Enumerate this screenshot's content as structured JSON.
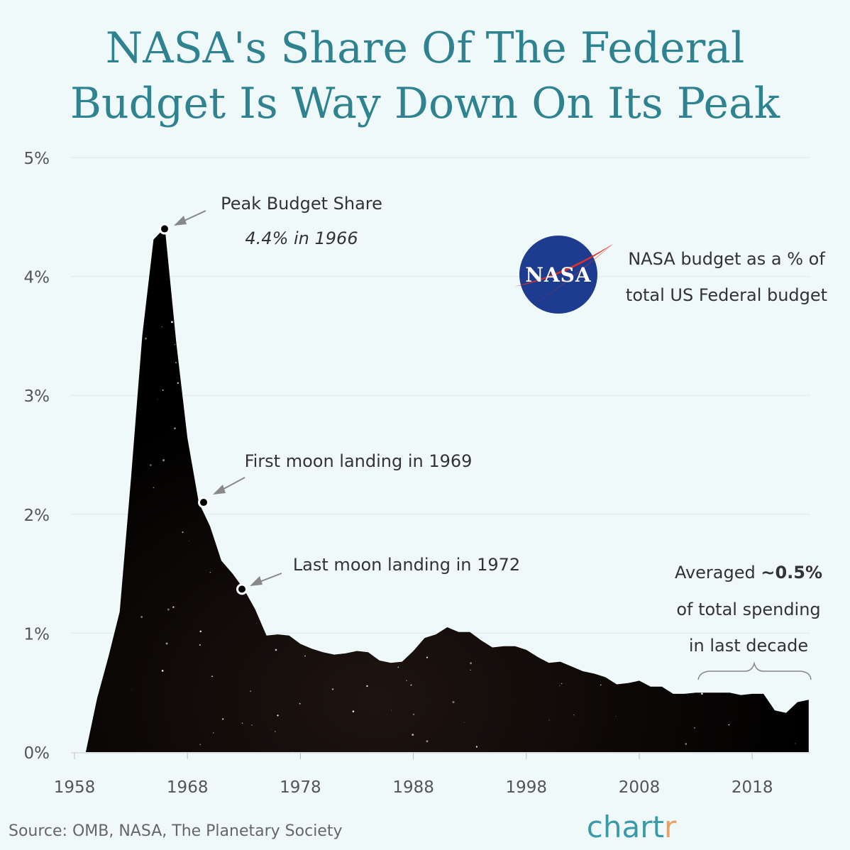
{
  "chart_data": {
    "type": "area",
    "title": "NASA's Share Of The Federal Budget Is Way Down On Its Peak",
    "title_lines": [
      "NASA's Share Of The Federal",
      "Budget Is Way Down On Its Peak"
    ],
    "xlabel": "",
    "ylabel": "",
    "xlim": [
      1958,
      2023
    ],
    "ylim": [
      0,
      5
    ],
    "grid": true,
    "x_ticks": [
      "1958",
      "1968",
      "1978",
      "1988",
      "1998",
      "2008",
      "2018"
    ],
    "y_ticks": [
      "0%",
      "1%",
      "2%",
      "3%",
      "4%",
      "5%"
    ],
    "x": [
      1959,
      1960,
      1961,
      1962,
      1963,
      1964,
      1965,
      1966,
      1967,
      1968,
      1969,
      1970,
      1971,
      1972,
      1973,
      1974,
      1975,
      1976,
      1977,
      1978,
      1979,
      1980,
      1981,
      1982,
      1983,
      1984,
      1985,
      1986,
      1987,
      1988,
      1989,
      1990,
      1991,
      1992,
      1993,
      1994,
      1995,
      1996,
      1997,
      1998,
      1999,
      2000,
      2001,
      2002,
      2003,
      2004,
      2005,
      2006,
      2007,
      2008,
      2009,
      2010,
      2011,
      2012,
      2013,
      2014,
      2015,
      2016,
      2017,
      2018,
      2019,
      2020,
      2021,
      2022,
      2023
    ],
    "values": [
      0,
      0.45,
      0.8,
      1.18,
      2.3,
      3.5,
      4.31,
      4.41,
      3.45,
      2.64,
      2.1,
      1.9,
      1.61,
      1.5,
      1.37,
      1.2,
      0.98,
      0.99,
      0.98,
      0.91,
      0.87,
      0.84,
      0.82,
      0.83,
      0.85,
      0.84,
      0.77,
      0.75,
      0.76,
      0.85,
      0.96,
      0.99,
      1.05,
      1.01,
      1.01,
      0.94,
      0.88,
      0.89,
      0.89,
      0.86,
      0.8,
      0.75,
      0.76,
      0.72,
      0.68,
      0.66,
      0.63,
      0.57,
      0.58,
      0.6,
      0.55,
      0.55,
      0.49,
      0.49,
      0.5,
      0.5,
      0.5,
      0.5,
      0.48,
      0.49,
      0.49,
      0.35,
      0.33,
      0.42,
      0.44
    ],
    "fill_color": "#000000",
    "annotations": [
      {
        "year": 1966,
        "value": 4.4,
        "line1": "Peak Budget Share",
        "line2": "4.4% in 1966"
      },
      {
        "year": 1969,
        "value": 2.1,
        "line1": "First moon landing in 1969"
      },
      {
        "year": 1972,
        "value": 1.37,
        "line1": "Last moon landing in 1972"
      }
    ],
    "legend_text": [
      "NASA budget as a % of",
      "total US Federal budget"
    ],
    "average_note": {
      "line1_pre": "Averaged ",
      "line1_bold": "~0.5%",
      "line2": "of total spending",
      "line3": "in last decade",
      "range": [
        2013,
        2023
      ]
    }
  },
  "logo": {
    "text": "NASA",
    "colors": {
      "blue": "#1d3c8f",
      "red": "#e03127"
    }
  },
  "colors": {
    "title": "#2f8391",
    "background": "#f0f9fa"
  },
  "footer": {
    "source": "Source: OMB, NASA, The Planetary Society",
    "brand": "chartr"
  }
}
